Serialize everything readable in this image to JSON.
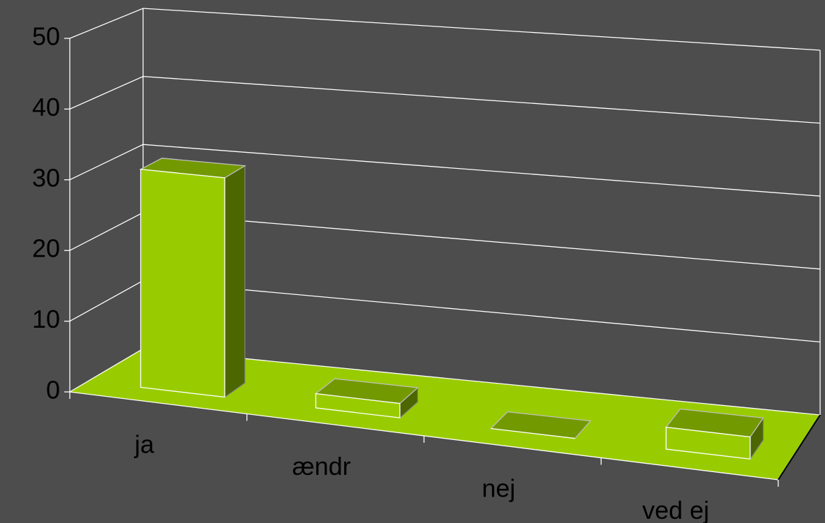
{
  "chart_data": {
    "type": "bar3d",
    "categories": [
      "ja",
      "ændr",
      "nej",
      "ved ej"
    ],
    "values": [
      31,
      2,
      0,
      3
    ],
    "color": "#99cc00",
    "ylim": [
      0,
      50
    ],
    "yticks": [
      0,
      10,
      20,
      30,
      40,
      50
    ],
    "grid": true
  }
}
